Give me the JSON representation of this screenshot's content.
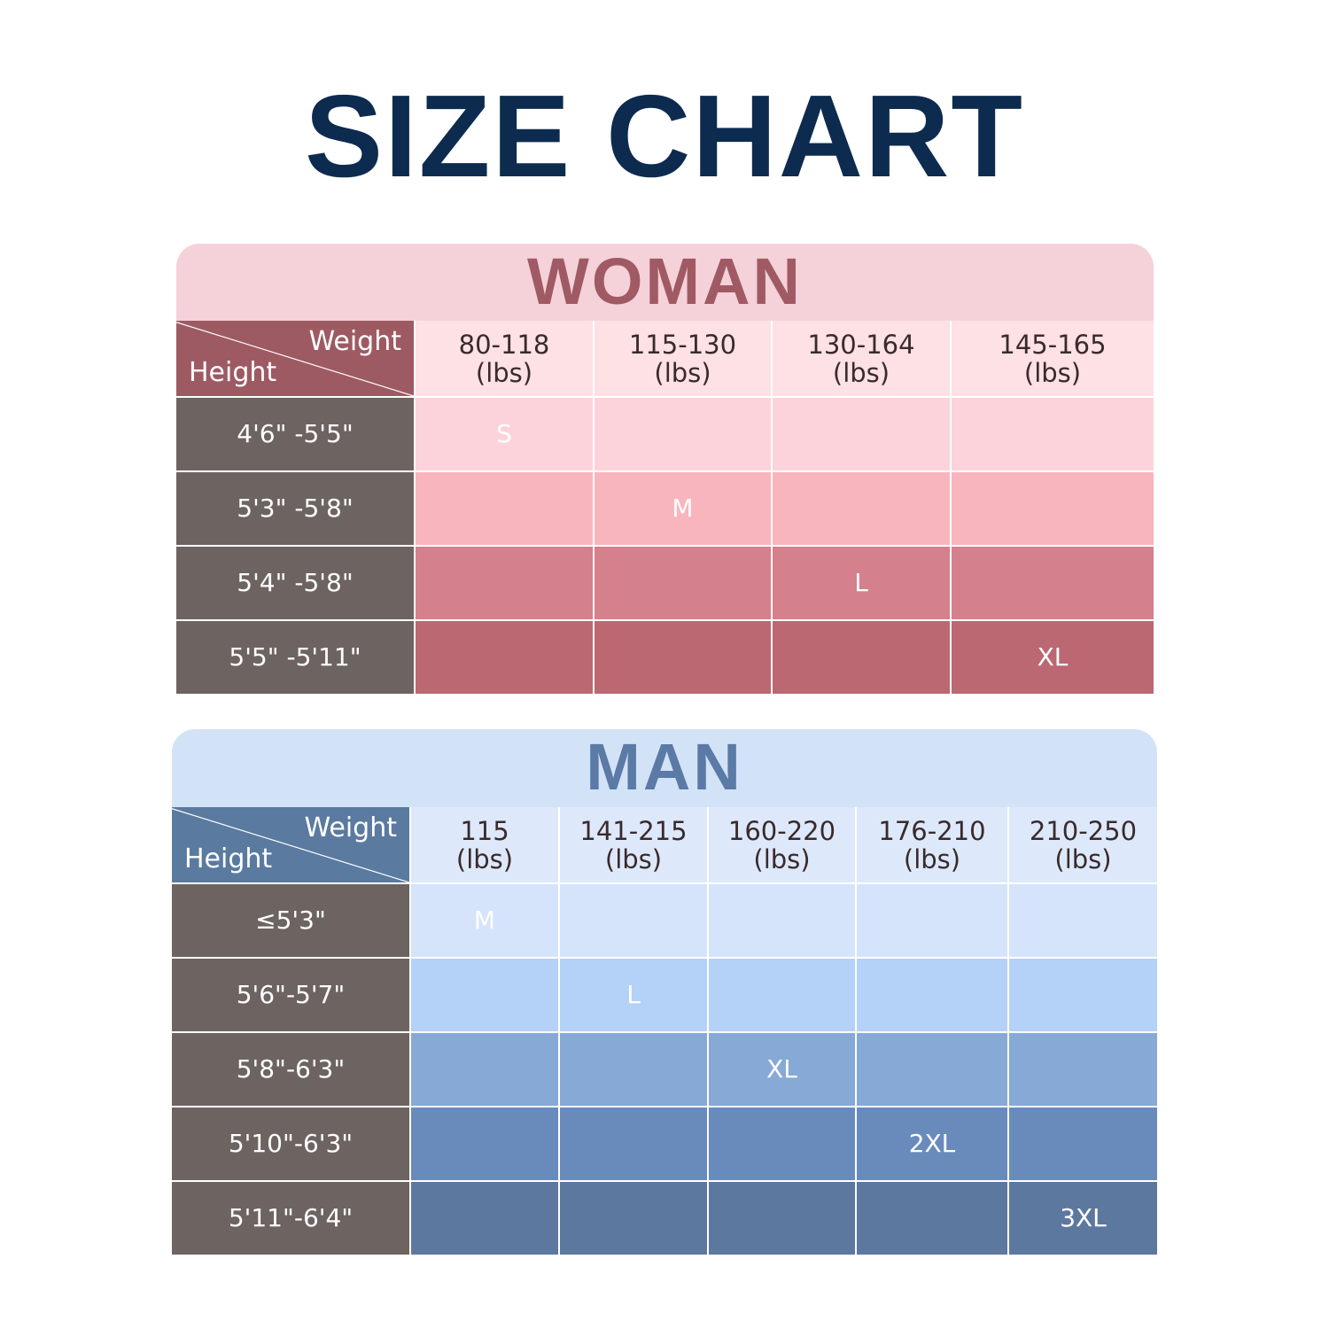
{
  "title": "SIZE CHART",
  "woman": {
    "label": "WOMAN",
    "corner_weight": "Weight",
    "corner_height": "Height",
    "columns": [
      [
        "80-118",
        "(lbs)"
      ],
      [
        "115-130",
        "(lbs)"
      ],
      [
        "130-164",
        "(lbs)"
      ],
      [
        "145-165",
        "(lbs)"
      ]
    ],
    "rows": [
      {
        "height": "4'6\" -5'5\"",
        "sizes": [
          "S",
          "",
          "",
          ""
        ]
      },
      {
        "height": "5'3\" -5'8\"",
        "sizes": [
          "",
          "M",
          "",
          ""
        ]
      },
      {
        "height": "5'4\" -5'8\"",
        "sizes": [
          "",
          "",
          "L",
          ""
        ]
      },
      {
        "height": "5'5\" -5'11\"",
        "sizes": [
          "",
          "",
          "",
          "XL"
        ]
      }
    ],
    "colors": {
      "band": "#f5d1da",
      "title": "#a05a63",
      "corner": "#9e5a63",
      "header": "#fde1e5",
      "height_cell": "#6d6462",
      "rows": [
        "#fcd3da",
        "#f9b5bd",
        "#d5808d",
        "#bb6872"
      ]
    }
  },
  "man": {
    "label": "MAN",
    "corner_weight": "Weight",
    "corner_height": "Height",
    "columns": [
      [
        "115",
        "(lbs)"
      ],
      [
        "141-215",
        "(lbs)"
      ],
      [
        "160-220",
        "(lbs)"
      ],
      [
        "176-210",
        "(lbs)"
      ],
      [
        "210-250",
        "(lbs)"
      ]
    ],
    "rows": [
      {
        "height": "≤5'3\"",
        "sizes": [
          "M",
          "",
          "",
          "",
          ""
        ]
      },
      {
        "height": "5'6\"-5'7\"",
        "sizes": [
          "",
          "L",
          "",
          "",
          ""
        ]
      },
      {
        "height": "5'8\"-6'3\"",
        "sizes": [
          "",
          "",
          "XL",
          "",
          ""
        ]
      },
      {
        "height": "5'10\"-6'3\"",
        "sizes": [
          "",
          "",
          "",
          "2XL",
          ""
        ]
      },
      {
        "height": "5'11\"-6'4\"",
        "sizes": [
          "",
          "",
          "",
          "",
          "3XL"
        ]
      }
    ],
    "colors": {
      "band": "#d3e3f7",
      "title": "#5b7aa6",
      "corner": "#5b7aa0",
      "header": "#dde9fa",
      "height_cell": "#6d6462",
      "rows": [
        "#d5e4fa",
        "#b4d1f7",
        "#86a9d6",
        "#698bbb",
        "#5d789f"
      ]
    }
  }
}
